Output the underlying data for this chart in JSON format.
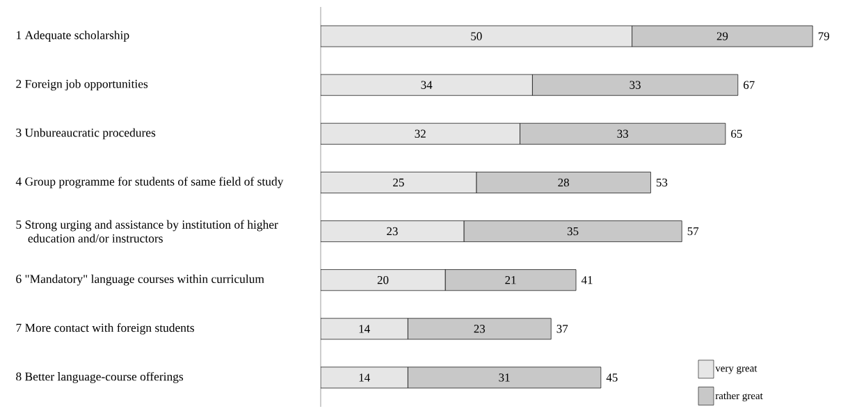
{
  "chart_data": {
    "type": "bar",
    "orientation": "horizontal",
    "stacked": true,
    "categories": [
      "1 Adequate scholarship",
      "2 Foreign job opportunities",
      "3 Unbureaucratic procedures",
      "4 Group programme for students of same field of study",
      "5 Strong urging and assistance by institution of higher education and/or instructors",
      "6 \"Mandatory\" language courses within curriculum",
      "7 More contact with foreign students",
      "8 Better language-course offerings"
    ],
    "series": [
      {
        "name": "very great",
        "color": "#e6e6e6",
        "values": [
          50,
          34,
          32,
          25,
          23,
          20,
          14,
          14
        ]
      },
      {
        "name": "rather great",
        "color": "#c8c8c8",
        "values": [
          29,
          33,
          33,
          28,
          35,
          21,
          23,
          31
        ]
      }
    ],
    "totals": [
      "79",
      "67",
      "65",
      "53",
      "57",
      "41",
      "37",
      "45"
    ],
    "data_labels": true,
    "legend": "bottom right"
  }
}
